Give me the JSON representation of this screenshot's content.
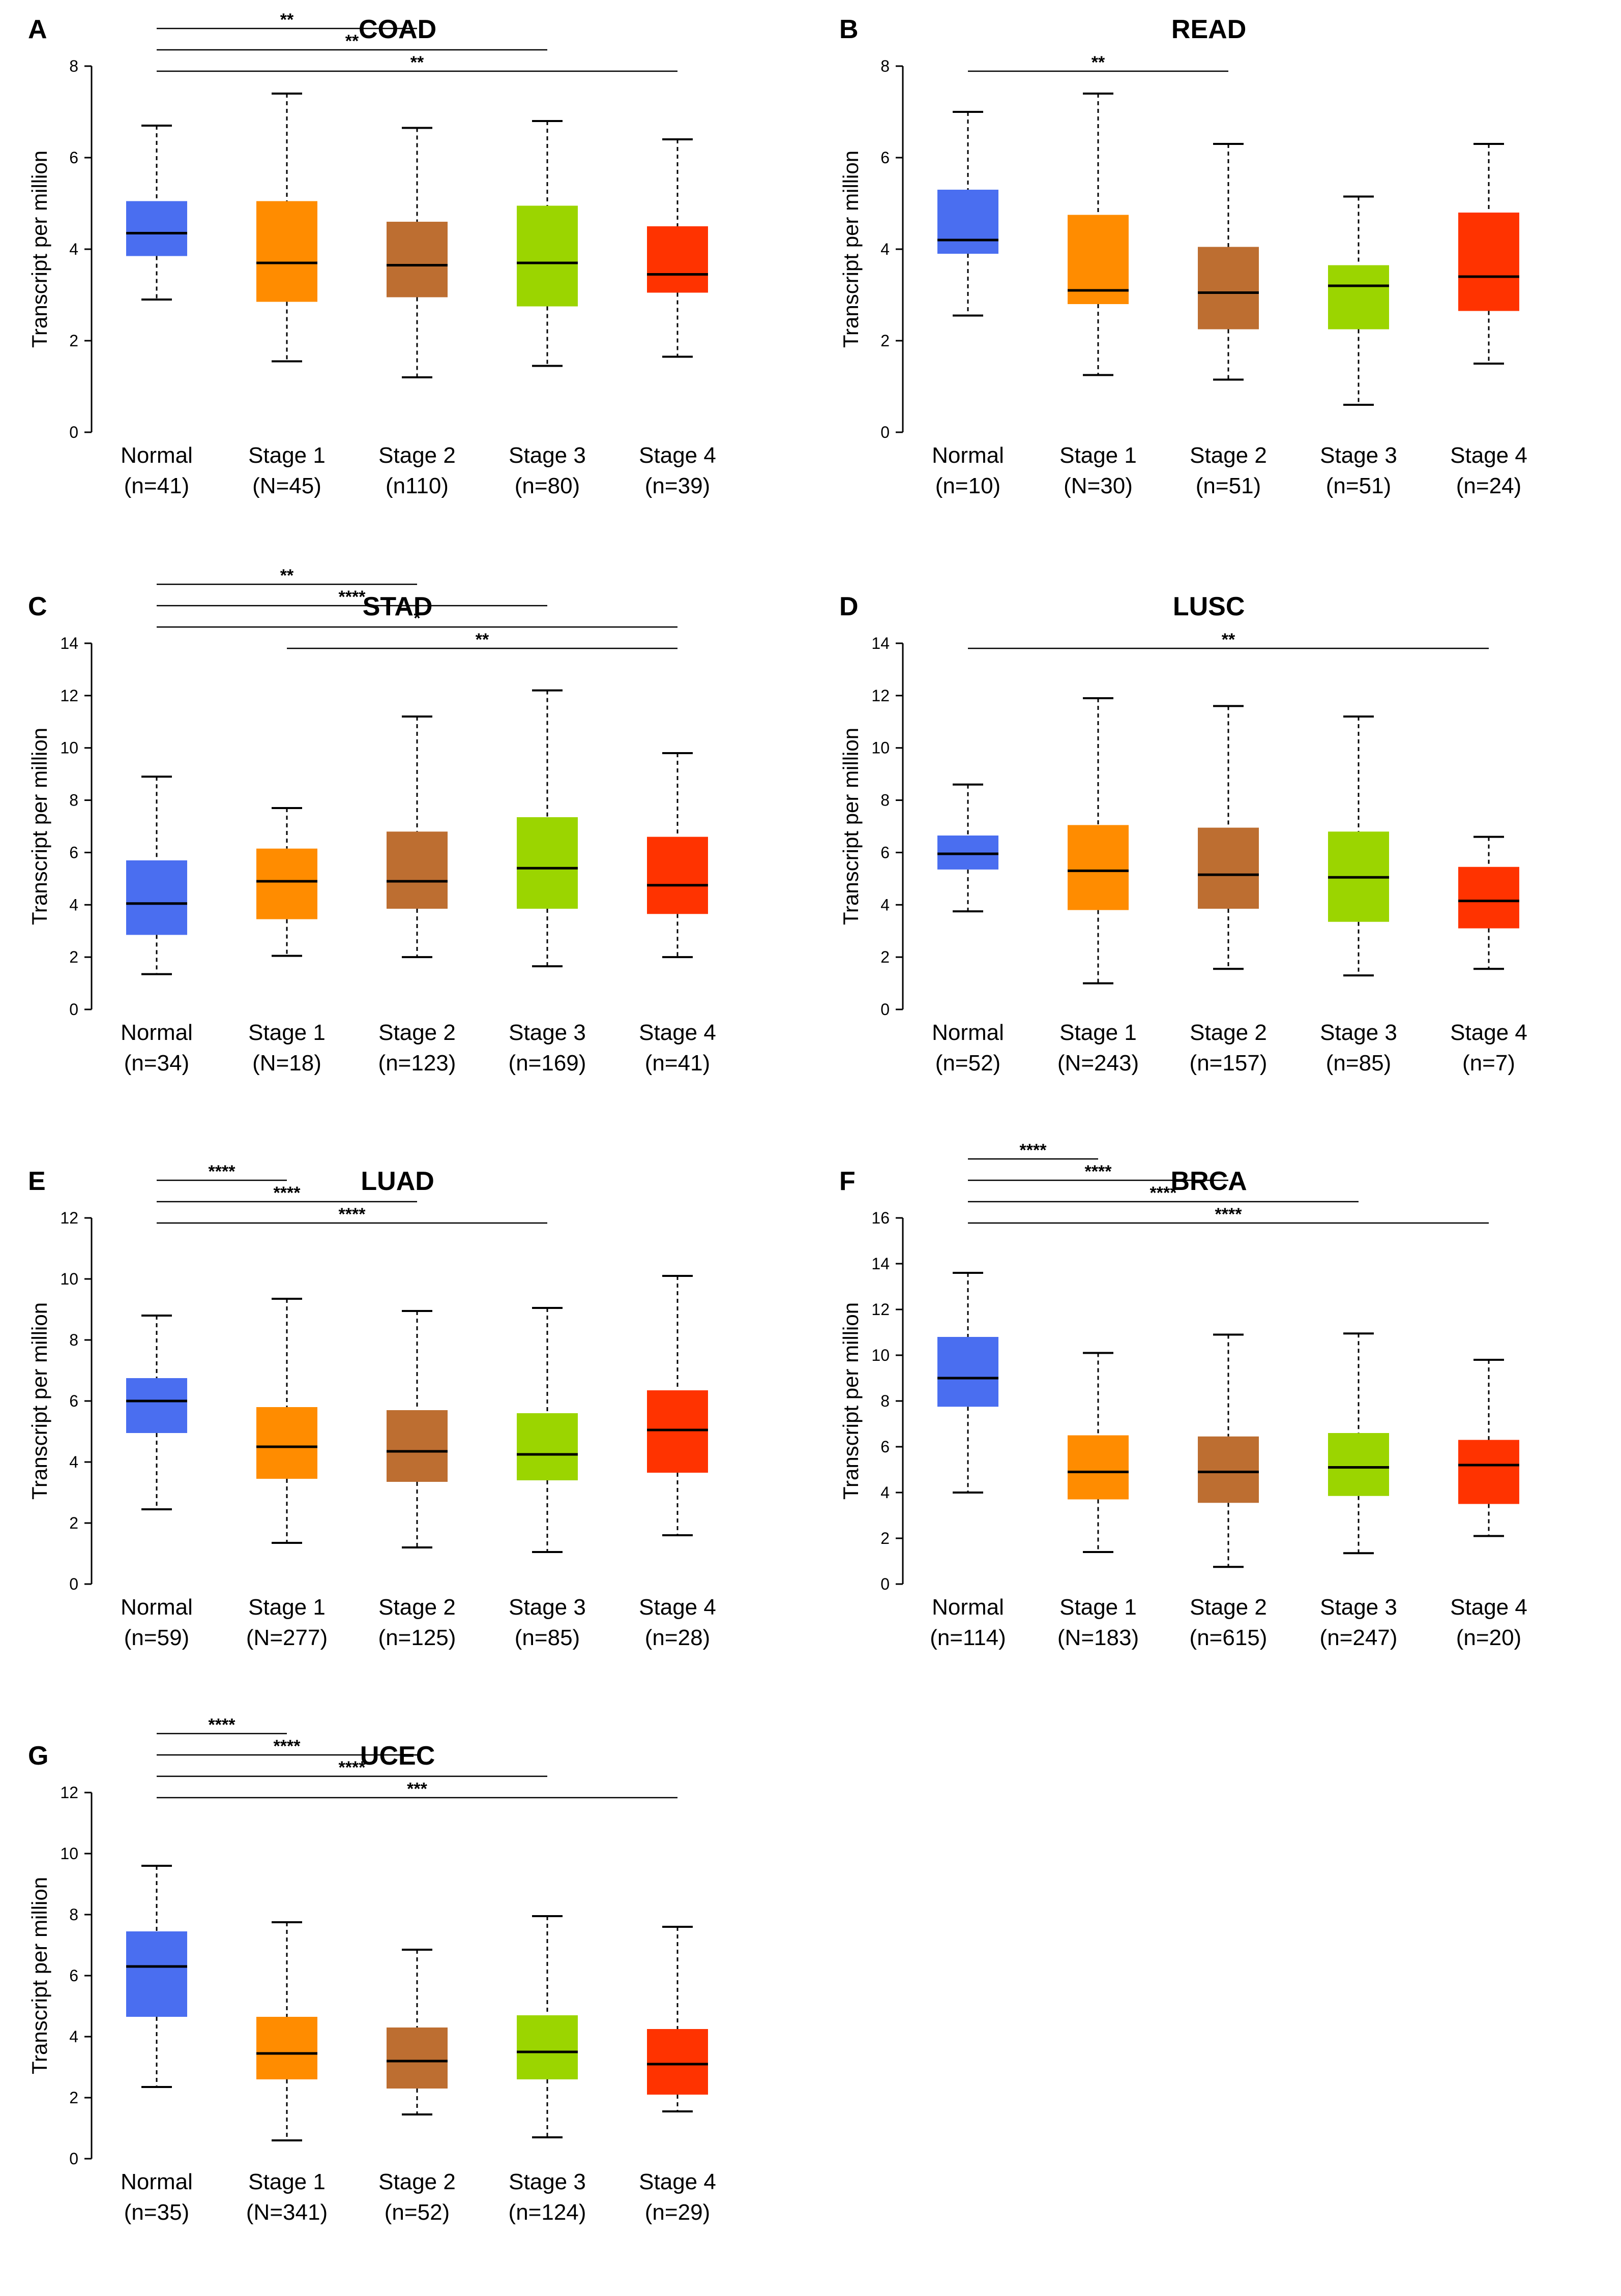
{
  "figure": {
    "ylabel": "Transcript per million",
    "colors": {
      "Normal": "#4a6ef0",
      "Stage 1": "#ff8c00",
      "Stage 2": "#bd6e31",
      "Stage 3": "#9bd500",
      "Stage 4": "#ff3300"
    }
  },
  "chart_data": [
    {
      "letter": "A",
      "title": "COAD",
      "type": "box",
      "ylabel": "Transcript per million",
      "ylim": [
        0,
        8
      ],
      "yticks": [
        0,
        2,
        4,
        6,
        8
      ],
      "categories": [
        "Normal",
        "Stage 1",
        "Stage 2",
        "Stage 3",
        "Stage 4"
      ],
      "counts": [
        "(n=41)",
        "(N=45)",
        "(n110)",
        "(n=80)",
        "(n=39)"
      ],
      "boxes": [
        {
          "min": 2.9,
          "q1": 3.85,
          "median": 4.35,
          "q3": 5.05,
          "max": 6.7
        },
        {
          "min": 1.55,
          "q1": 2.85,
          "median": 3.7,
          "q3": 5.05,
          "max": 7.4
        },
        {
          "min": 1.2,
          "q1": 2.95,
          "median": 3.65,
          "q3": 4.6,
          "max": 6.65
        },
        {
          "min": 1.45,
          "q1": 2.75,
          "median": 3.7,
          "q3": 4.95,
          "max": 6.8
        },
        {
          "min": 1.65,
          "q1": 3.05,
          "median": 3.45,
          "q3": 4.5,
          "max": 6.4
        }
      ],
      "significance": [
        {
          "from": 0,
          "to": 2,
          "label": "**"
        },
        {
          "from": 0,
          "to": 3,
          "label": "**"
        },
        {
          "from": 0,
          "to": 4,
          "label": "**"
        }
      ]
    },
    {
      "letter": "B",
      "title": "READ",
      "type": "box",
      "ylabel": "Transcript per million",
      "ylim": [
        0,
        8
      ],
      "yticks": [
        0,
        2,
        4,
        6,
        8
      ],
      "categories": [
        "Normal",
        "Stage 1",
        "Stage 2",
        "Stage 3",
        "Stage 4"
      ],
      "counts": [
        "(n=10)",
        "(N=30)",
        "(n=51)",
        "(n=51)",
        "(n=24)"
      ],
      "boxes": [
        {
          "min": 2.55,
          "q1": 3.9,
          "median": 4.2,
          "q3": 5.3,
          "max": 7.0
        },
        {
          "min": 1.25,
          "q1": 2.8,
          "median": 3.1,
          "q3": 4.75,
          "max": 7.4
        },
        {
          "min": 1.15,
          "q1": 2.25,
          "median": 3.05,
          "q3": 4.05,
          "max": 6.3
        },
        {
          "min": 0.6,
          "q1": 2.25,
          "median": 3.2,
          "q3": 3.65,
          "max": 5.15
        },
        {
          "min": 1.5,
          "q1": 2.65,
          "median": 3.4,
          "q3": 4.8,
          "max": 6.3
        }
      ],
      "significance": [
        {
          "from": 0,
          "to": 2,
          "label": "**"
        }
      ]
    },
    {
      "letter": "C",
      "title": "STAD",
      "type": "box",
      "ylabel": "Transcript per million",
      "ylim": [
        0,
        14
      ],
      "yticks": [
        0,
        2,
        4,
        6,
        8,
        10,
        12,
        14
      ],
      "categories": [
        "Normal",
        "Stage 1",
        "Stage 2",
        "Stage 3",
        "Stage 4"
      ],
      "counts": [
        "(n=34)",
        "(N=18)",
        "(n=123)",
        "(n=169)",
        "(n=41)"
      ],
      "boxes": [
        {
          "min": 1.35,
          "q1": 2.85,
          "median": 4.05,
          "q3": 5.7,
          "max": 8.9
        },
        {
          "min": 2.05,
          "q1": 3.45,
          "median": 4.9,
          "q3": 6.15,
          "max": 7.7
        },
        {
          "min": 2.0,
          "q1": 3.85,
          "median": 4.9,
          "q3": 6.8,
          "max": 11.2
        },
        {
          "min": 1.65,
          "q1": 3.85,
          "median": 5.4,
          "q3": 7.35,
          "max": 12.2
        },
        {
          "min": 2.0,
          "q1": 3.65,
          "median": 4.75,
          "q3": 6.6,
          "max": 9.8
        }
      ],
      "significance": [
        {
          "from": 0,
          "to": 2,
          "label": "**"
        },
        {
          "from": 0,
          "to": 3,
          "label": "****"
        },
        {
          "from": 0,
          "to": 4,
          "label": "*"
        },
        {
          "from": 1,
          "to": 4,
          "label": "**"
        }
      ]
    },
    {
      "letter": "D",
      "title": "LUSC",
      "type": "box",
      "ylabel": "Transcript per million",
      "ylim": [
        0,
        14
      ],
      "yticks": [
        0,
        2,
        4,
        6,
        8,
        10,
        12,
        14
      ],
      "categories": [
        "Normal",
        "Stage 1",
        "Stage 2",
        "Stage 3",
        "Stage 4"
      ],
      "counts": [
        "(n=52)",
        "(N=243)",
        "(n=157)",
        "(n=85)",
        "(n=7)"
      ],
      "boxes": [
        {
          "min": 3.75,
          "q1": 5.35,
          "median": 5.95,
          "q3": 6.65,
          "max": 8.6
        },
        {
          "min": 1.0,
          "q1": 3.8,
          "median": 5.3,
          "q3": 7.05,
          "max": 11.9
        },
        {
          "min": 1.55,
          "q1": 3.85,
          "median": 5.15,
          "q3": 6.95,
          "max": 11.6
        },
        {
          "min": 1.3,
          "q1": 3.35,
          "median": 5.05,
          "q3": 6.8,
          "max": 11.2
        },
        {
          "min": 1.55,
          "q1": 3.1,
          "median": 4.15,
          "q3": 5.45,
          "max": 6.6
        }
      ],
      "significance": [
        {
          "from": 0,
          "to": 4,
          "label": "**"
        }
      ]
    },
    {
      "letter": "E",
      "title": "LUAD",
      "type": "box",
      "ylabel": "Transcript per million",
      "ylim": [
        0,
        12
      ],
      "yticks": [
        0,
        2,
        4,
        6,
        8,
        10,
        12
      ],
      "categories": [
        "Normal",
        "Stage 1",
        "Stage 2",
        "Stage 3",
        "Stage 4"
      ],
      "counts": [
        "(n=59)",
        "(N=277)",
        "(n=125)",
        "(n=85)",
        "(n=28)"
      ],
      "boxes": [
        {
          "min": 2.45,
          "q1": 4.95,
          "median": 6.0,
          "q3": 6.75,
          "max": 8.8
        },
        {
          "min": 1.35,
          "q1": 3.45,
          "median": 4.5,
          "q3": 5.8,
          "max": 9.35
        },
        {
          "min": 1.2,
          "q1": 3.35,
          "median": 4.35,
          "q3": 5.7,
          "max": 8.95
        },
        {
          "min": 1.05,
          "q1": 3.4,
          "median": 4.25,
          "q3": 5.6,
          "max": 9.05
        },
        {
          "min": 1.6,
          "q1": 3.65,
          "median": 5.05,
          "q3": 6.35,
          "max": 10.1
        }
      ],
      "significance": [
        {
          "from": 0,
          "to": 1,
          "label": "****"
        },
        {
          "from": 0,
          "to": 2,
          "label": "****"
        },
        {
          "from": 0,
          "to": 3,
          "label": "****"
        }
      ]
    },
    {
      "letter": "F",
      "title": "BRCA",
      "type": "box",
      "ylabel": "Transcript per million",
      "ylim": [
        0,
        16
      ],
      "yticks": [
        0,
        2,
        4,
        6,
        8,
        10,
        12,
        14,
        16
      ],
      "categories": [
        "Normal",
        "Stage 1",
        "Stage 2",
        "Stage 3",
        "Stage 4"
      ],
      "counts": [
        "(n=114)",
        "(N=183)",
        "(n=615)",
        "(n=247)",
        "(n=20)"
      ],
      "boxes": [
        {
          "min": 4.0,
          "q1": 7.75,
          "median": 9.0,
          "q3": 10.8,
          "max": 13.6
        },
        {
          "min": 1.4,
          "q1": 3.7,
          "median": 4.9,
          "q3": 6.5,
          "max": 10.1
        },
        {
          "min": 0.75,
          "q1": 3.55,
          "median": 4.9,
          "q3": 6.45,
          "max": 10.9
        },
        {
          "min": 1.35,
          "q1": 3.85,
          "median": 5.1,
          "q3": 6.6,
          "max": 10.95
        },
        {
          "min": 2.1,
          "q1": 3.5,
          "median": 5.2,
          "q3": 6.3,
          "max": 9.8
        }
      ],
      "significance": [
        {
          "from": 0,
          "to": 1,
          "label": "****"
        },
        {
          "from": 0,
          "to": 2,
          "label": "****"
        },
        {
          "from": 0,
          "to": 3,
          "label": "****"
        },
        {
          "from": 0,
          "to": 4,
          "label": "****"
        }
      ]
    },
    {
      "letter": "G",
      "title": "UCEC",
      "type": "box",
      "ylabel": "Transcript per million",
      "ylim": [
        0,
        12
      ],
      "yticks": [
        0,
        2,
        4,
        6,
        8,
        10,
        12
      ],
      "categories": [
        "Normal",
        "Stage 1",
        "Stage 2",
        "Stage 3",
        "Stage 4"
      ],
      "counts": [
        "(n=35)",
        "(N=341)",
        "(n=52)",
        "(n=124)",
        "(n=29)"
      ],
      "boxes": [
        {
          "min": 2.35,
          "q1": 4.65,
          "median": 6.3,
          "q3": 7.45,
          "max": 9.6
        },
        {
          "min": 0.6,
          "q1": 2.6,
          "median": 3.45,
          "q3": 4.65,
          "max": 7.75
        },
        {
          "min": 1.45,
          "q1": 2.3,
          "median": 3.2,
          "q3": 4.3,
          "max": 6.85
        },
        {
          "min": 0.7,
          "q1": 2.6,
          "median": 3.5,
          "q3": 4.7,
          "max": 7.95
        },
        {
          "min": 1.55,
          "q1": 2.1,
          "median": 3.1,
          "q3": 4.25,
          "max": 7.6
        }
      ],
      "significance": [
        {
          "from": 0,
          "to": 1,
          "label": "****"
        },
        {
          "from": 0,
          "to": 2,
          "label": "****"
        },
        {
          "from": 0,
          "to": 3,
          "label": "****"
        },
        {
          "from": 0,
          "to": 4,
          "label": "***"
        }
      ]
    }
  ]
}
